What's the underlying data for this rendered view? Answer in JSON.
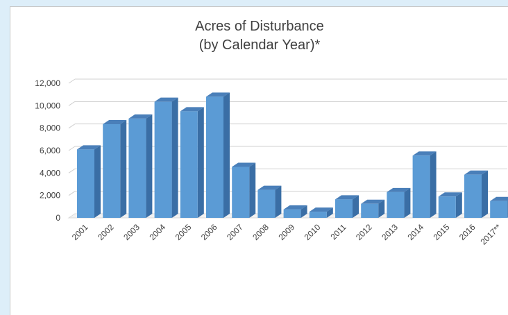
{
  "chart_data": {
    "type": "bar",
    "title": "Acres of Disturbance",
    "subtitle": "(by Calendar Year)*",
    "categories": [
      "2001",
      "2002",
      "2003",
      "2004",
      "2005",
      "2006",
      "2007",
      "2008",
      "2009",
      "2010",
      "2011",
      "2012",
      "2013",
      "2014",
      "2015",
      "2016",
      "2017**"
    ],
    "values": [
      6100,
      8350,
      8850,
      10350,
      9500,
      10800,
      4550,
      2500,
      750,
      550,
      1650,
      1250,
      2300,
      5550,
      1900,
      3850,
      1500
    ],
    "ylim": [
      0,
      12000
    ],
    "yticks": [
      "0",
      "2,000",
      "4,000",
      "6,000",
      "8,000",
      "10,000",
      "12,000"
    ],
    "grid": true,
    "bar_color": "#5b9bd5",
    "bar_side_color": "#3a6ea5",
    "bar_top_color": "#4a7fb9"
  }
}
